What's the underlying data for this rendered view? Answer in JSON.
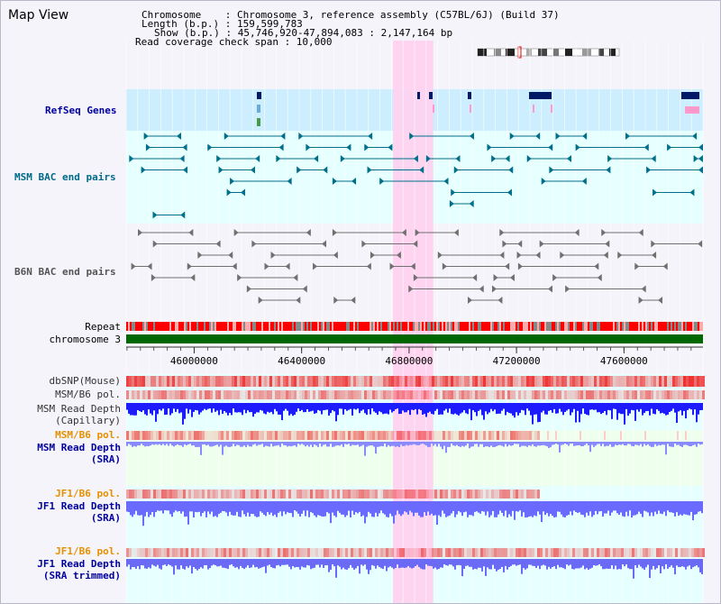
{
  "view_title": "Map View",
  "info": {
    "chromosome_line": "Chromosome    : Chromosome 3, reference assembly (C57BL/6J) (Build 37)",
    "length_line": "Length (b.p.) : 159,599,783",
    "show_line": "Show (b.p.) : 45,746,920-47,894,083 : 2,147,164 bp",
    "coverage_line": "Read coverage check span : 10,000"
  },
  "tracks": {
    "refseq": "RefSeq Genes",
    "msm_bac": "MSM BAC end pairs",
    "b6n_bac": "B6N BAC end pairs",
    "repeat": "Repeat",
    "chromosome": "chromosome 3",
    "dbsnp": "dbSNP(Mouse)",
    "msm_b6_pol_1": "MSM/B6 pol.",
    "msm_depth_cap_1": "MSM Read Depth",
    "msm_depth_cap_2": "(Capillary)",
    "msm_b6_pol_2": "MSM/B6 pol.",
    "msm_depth_sra_1": "MSM Read Depth",
    "msm_depth_sra_2": "(SRA)",
    "jf1_b6_pol_1": "JF1/B6 pol.",
    "jf1_depth_sra_1": "JF1 Read Depth",
    "jf1_depth_sra_2": "(SRA)",
    "jf1_b6_pol_2": "JF1/B6 pol.",
    "jf1_depth_trim_1": "JF1 Read Depth",
    "jf1_depth_trim_2": "(SRA trimmed)"
  },
  "axis": {
    "ticks": [
      "46000000",
      "46400000",
      "46800000",
      "47200000",
      "47600000"
    ],
    "tick_values": [
      46000000,
      46400000,
      46800000,
      47200000,
      47600000
    ],
    "range": [
      45746920,
      47894083
    ]
  },
  "highlight_range": [
    46740000,
    46890000
  ],
  "colors": {
    "refseq_bg": "#cceeff",
    "bac_bg": "#e6ffff",
    "highlight": "#ffd0f0",
    "lower_bg_teal": "#e6ffff",
    "lower_bg_green": "#eeffee",
    "repeat_red": "#ff0000",
    "chromosome_green": "#006600",
    "gene_navy": "#001a66",
    "msm_bac_teal": "#006f8a",
    "b6n_gray": "#707070",
    "depth_blue": "#1c1cff",
    "depth_light_blue": "#6a6aff",
    "pol_red": "#ee3030",
    "label_orange": "#e69000"
  }
}
